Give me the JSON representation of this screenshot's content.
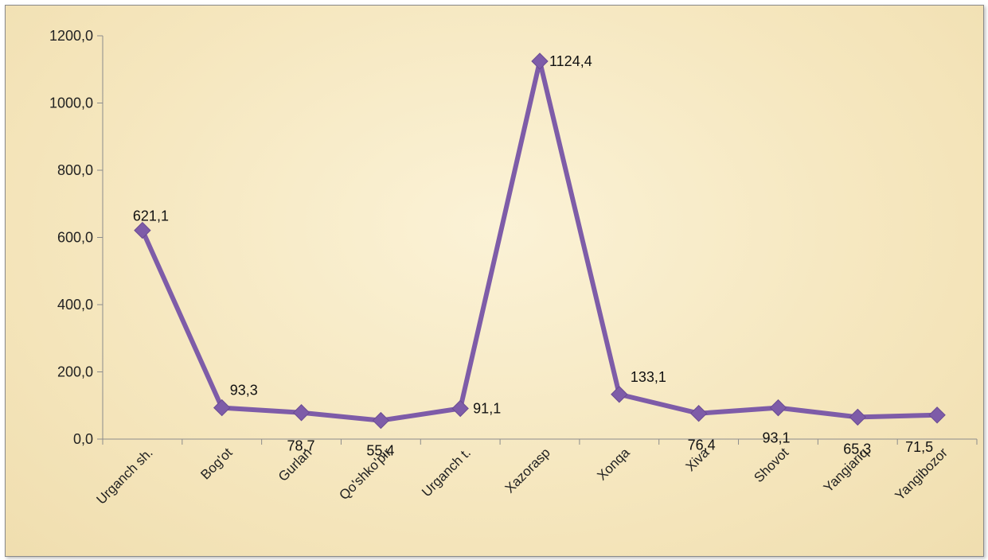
{
  "chart_data": {
    "type": "line",
    "categories": [
      "Urganch sh.",
      "Bog'ot",
      "Gurlan",
      "Qo'shko'pir",
      "Urganch t.",
      "Xazorasp",
      "Xonqa",
      "Xiva",
      "Shovot",
      "Yangiariq",
      "Yangibozor"
    ],
    "series": [
      {
        "values": [
          621.1,
          93.3,
          78.7,
          55.4,
          91.1,
          1124.4,
          133.1,
          76.4,
          93.1,
          65.3,
          71.5
        ],
        "labels": [
          "621,1",
          "93,3",
          "78,7",
          "55,4",
          "91,1",
          "1124,4",
          "133,1",
          "76,4",
          "93,1",
          "65,3",
          "71,5"
        ],
        "color": "#7e5ca8",
        "marker": "diamond"
      }
    ],
    "y_ticks": [
      0,
      200,
      400,
      600,
      800,
      1000,
      1200
    ],
    "y_tick_labels": [
      "0,0",
      "200,0",
      "400,0",
      "600,0",
      "800,0",
      "1000,0",
      "1200,0"
    ],
    "ylim": [
      0,
      1200
    ],
    "grid": false,
    "legend": "none",
    "background": "#f7ebc8"
  }
}
